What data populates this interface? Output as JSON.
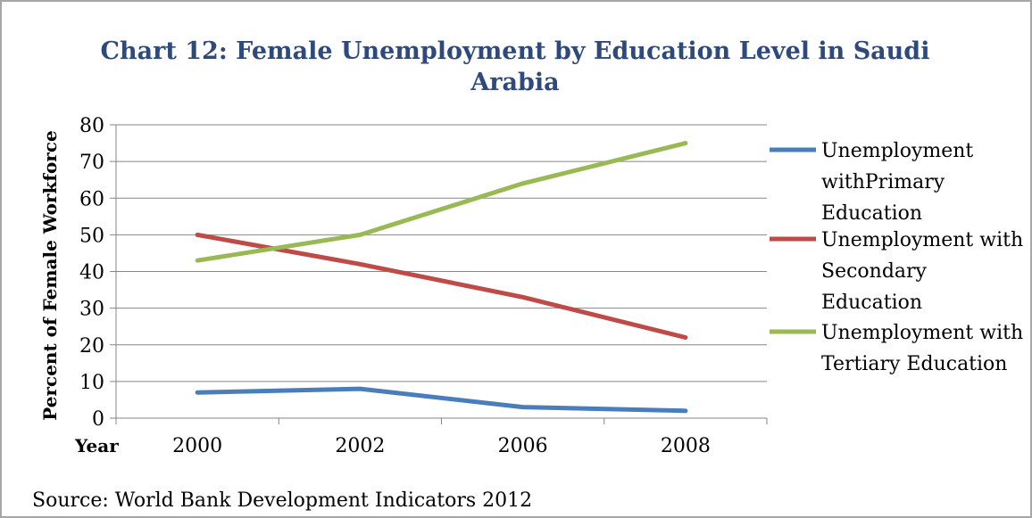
{
  "chart_data": {
    "type": "line",
    "title": "Chart 12: Female Unemployment by Education Level in Saudi Arabia",
    "title_lines": [
      "Chart 12: Female Unemployment by Education Level in Saudi",
      "Arabia"
    ],
    "ylabel": "Percent of Female Workforce",
    "xlabel": "Year",
    "categories": [
      "2000",
      "2002",
      "2006",
      "2008"
    ],
    "ylim": [
      0,
      80
    ],
    "yticks": [
      0,
      10,
      20,
      30,
      40,
      50,
      60,
      70,
      80
    ],
    "grid": true,
    "legend_position": "right",
    "series": [
      {
        "name": "Unemployment withPrimary Education",
        "name_lines": [
          "Unemployment",
          "withPrimary",
          "Education"
        ],
        "color": "#4a7ebb",
        "values": [
          7,
          8,
          3,
          2
        ]
      },
      {
        "name": "Unemployment with Secondary Education",
        "name_lines": [
          "Unemployment with",
          "Secondary",
          "Education"
        ],
        "color": "#be4b48",
        "values": [
          50,
          42,
          33,
          22
        ]
      },
      {
        "name": "Unemployment with Tertiary Education",
        "name_lines": [
          "Unemployment with",
          "Tertiary Education"
        ],
        "color": "#98b954",
        "values": [
          43,
          50,
          64,
          75
        ]
      }
    ]
  },
  "source": "Source: World Bank Development Indicators 2012"
}
